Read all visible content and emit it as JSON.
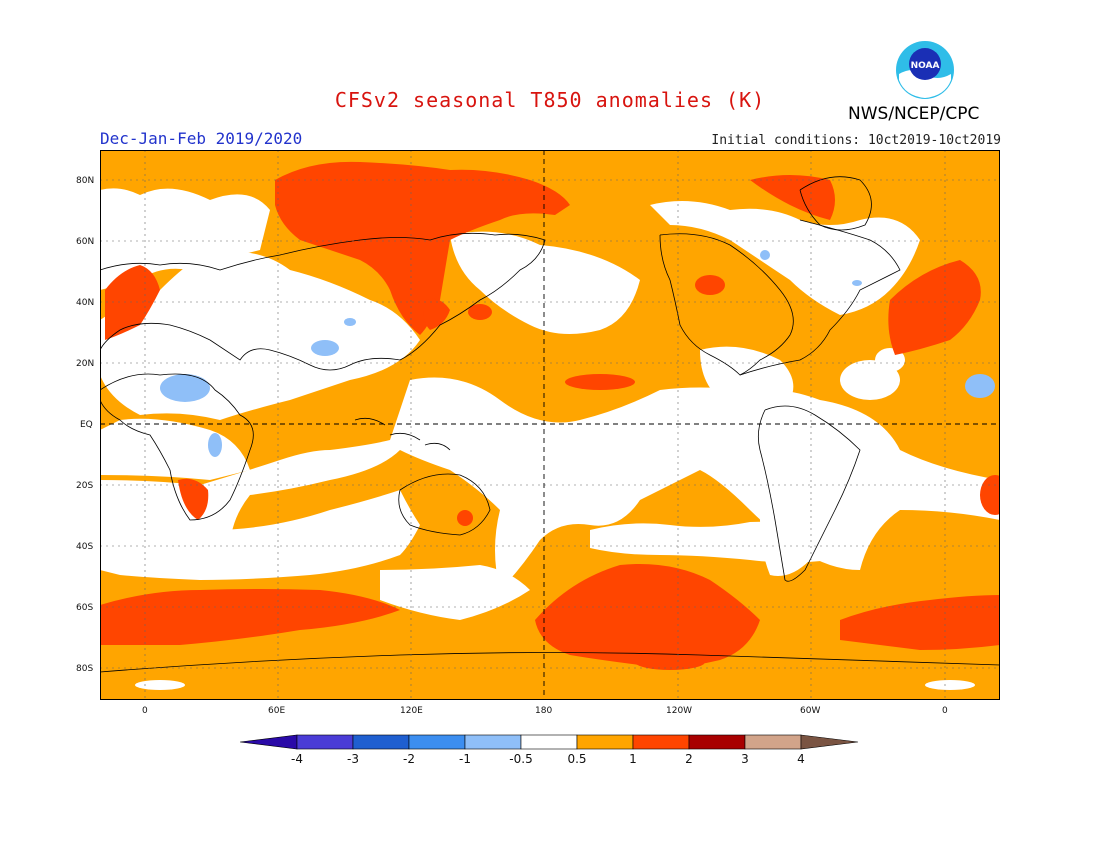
{
  "header": {
    "title": "CFSv2 seasonal T850 anomalies (K)",
    "agency": "NWS/NCEP/CPC",
    "logo_text": "NOAA",
    "period": "Dec-Jan-Feb 2019/2020",
    "initial_conditions": "Initial conditions: 10ct2019-10ct2019"
  },
  "map": {
    "lat_labels": [
      "80N",
      "60N",
      "40N",
      "20N",
      "EQ",
      "20S",
      "40S",
      "60S",
      "80S"
    ],
    "lon_labels": [
      "0",
      "60E",
      "120E",
      "180",
      "120W",
      "60W",
      "0"
    ],
    "projection": "cylindrical equidistant"
  },
  "colorbar": {
    "labels": [
      "-4",
      "-3",
      "-2",
      "-1",
      "-0.5",
      "0.5",
      "1",
      "2",
      "3",
      "4"
    ],
    "colors": [
      "#2a0aa8",
      "#4a3cd6",
      "#1f5fd0",
      "#3c8ef0",
      "#8fbff8",
      "#ffffff",
      "#ffa500",
      "#ff4500",
      "#a80000",
      "#d2a48a",
      "#7a5442"
    ]
  },
  "colors": {
    "title": "#d8140f",
    "period": "#2233cc",
    "warm_light": "#ffa500",
    "warm_strong": "#ff4500",
    "cool_light": "#8fbff8"
  }
}
